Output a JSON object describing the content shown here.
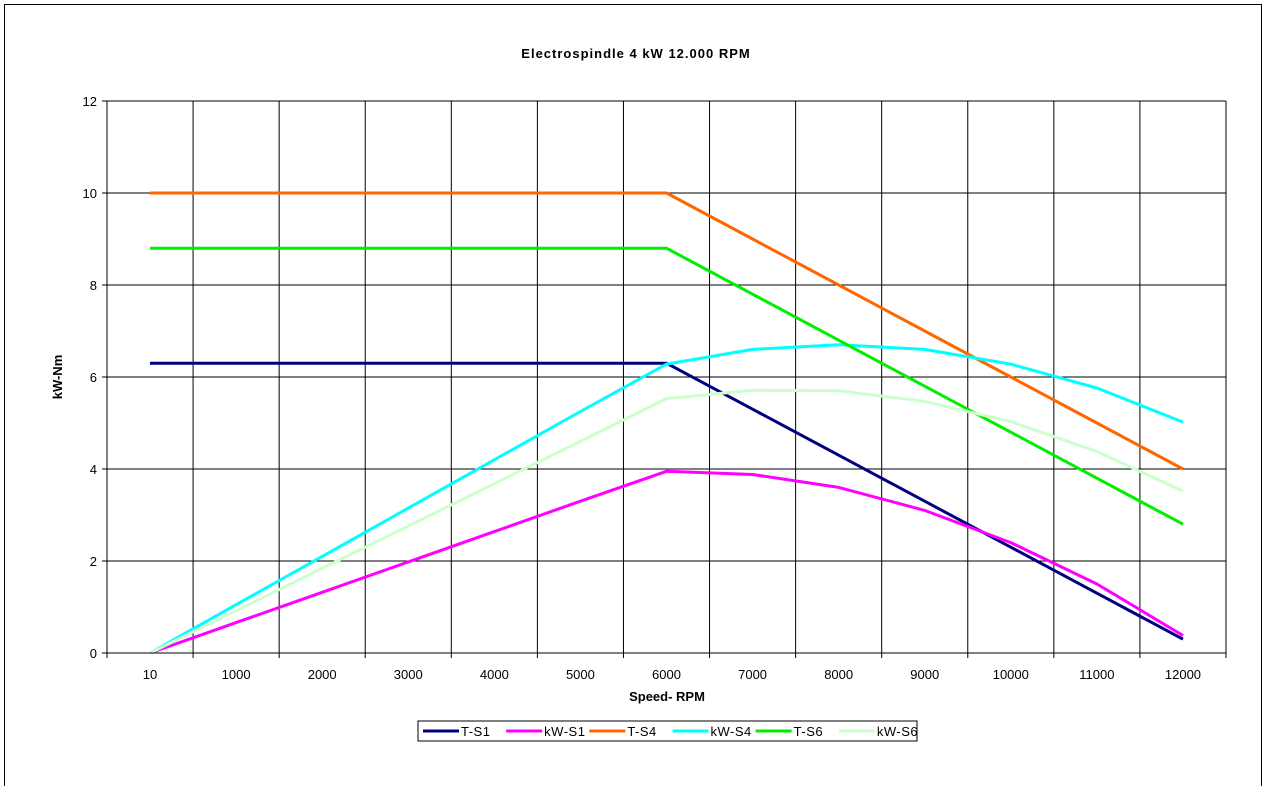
{
  "chart_data": {
    "type": "line",
    "title": "Electrospindle 4 kW 12.000 RPM",
    "xlabel": "Speed- RPM",
    "ylabel": "kW-Nm",
    "categories": [
      "10",
      "1000",
      "2000",
      "3000",
      "4000",
      "5000",
      "6000",
      "7000",
      "8000",
      "9000",
      "10000",
      "11000",
      "12000"
    ],
    "ylim": [
      0,
      12
    ],
    "yticks": [
      "0",
      "2",
      "4",
      "6",
      "8",
      "10",
      "12"
    ],
    "grid": true,
    "legend_position": "bottom",
    "series": [
      {
        "name": "T-S1",
        "color": "#000080",
        "values": [
          6.3,
          6.3,
          6.3,
          6.3,
          6.3,
          6.3,
          6.3,
          5.3,
          4.3,
          3.3,
          2.3,
          1.3,
          0.3
        ]
      },
      {
        "name": "kW-S1",
        "color": "#ff00ff",
        "values": [
          0,
          0.66,
          1.32,
          1.98,
          2.64,
          3.3,
          3.95,
          3.88,
          3.6,
          3.1,
          2.4,
          1.5,
          0.38
        ]
      },
      {
        "name": "T-S4",
        "color": "#ff6600",
        "values": [
          10,
          10,
          10,
          10,
          10,
          10,
          10,
          9,
          8,
          7,
          6,
          5,
          4
        ]
      },
      {
        "name": "kW-S4",
        "color": "#00ffff",
        "values": [
          0,
          1.05,
          2.1,
          3.15,
          4.2,
          5.25,
          6.28,
          6.6,
          6.7,
          6.6,
          6.28,
          5.76,
          5.02
        ]
      },
      {
        "name": "T-S6",
        "color": "#00ee00",
        "values": [
          8.8,
          8.8,
          8.8,
          8.8,
          8.8,
          8.8,
          8.8,
          7.8,
          6.8,
          5.8,
          4.8,
          3.8,
          2.8
        ]
      },
      {
        "name": "kW-S6",
        "color": "#ccffcc",
        "values": [
          0,
          0.92,
          1.84,
          2.76,
          3.68,
          4.6,
          5.53,
          5.71,
          5.7,
          5.47,
          5.03,
          4.38,
          3.52
        ]
      }
    ]
  }
}
